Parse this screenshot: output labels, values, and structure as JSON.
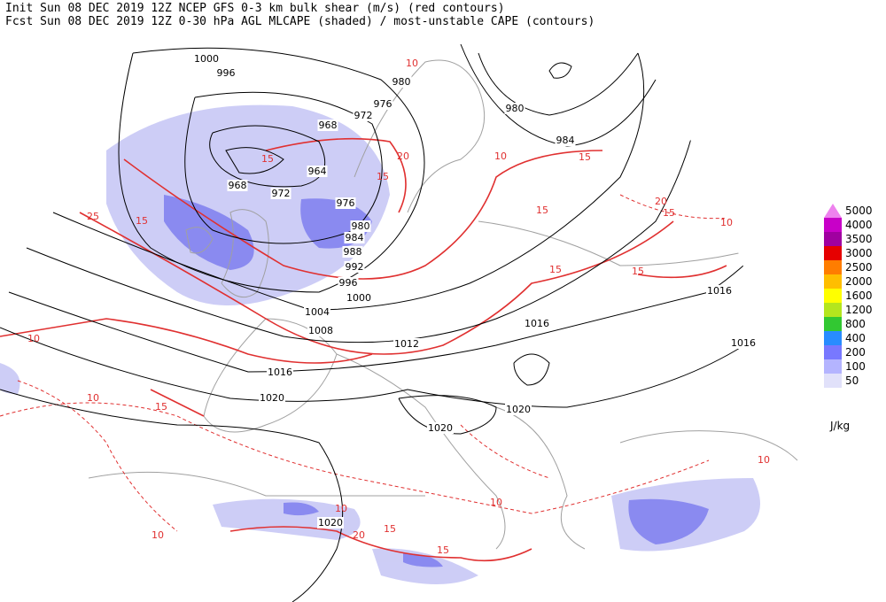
{
  "header": {
    "line1": "Init  Sun 08 DEC 2019 12Z  NCEP GFS 0-3 km bulk shear (m/s) (red contours)",
    "line2": "Fcst Sun 08 DEC 2019 12Z  0-30 hPa AGL MLCAPE (shaded) / most-unstable CAPE (contours)"
  },
  "colorbar": {
    "unit": "J/kg",
    "levels": [
      {
        "label": "5000",
        "color": "#ee82ee"
      },
      {
        "label": "4000",
        "color": "#c800c8"
      },
      {
        "label": "3500",
        "color": "#a000a0"
      },
      {
        "label": "3000",
        "color": "#e60000"
      },
      {
        "label": "2500",
        "color": "#ff7d00"
      },
      {
        "label": "2000",
        "color": "#ffbe00"
      },
      {
        "label": "1600",
        "color": "#ffff00"
      },
      {
        "label": "1200",
        "color": "#b4e61e"
      },
      {
        "label": "800",
        "color": "#32c832"
      },
      {
        "label": "400",
        "color": "#288cff"
      },
      {
        "label": "200",
        "color": "#7878ff"
      },
      {
        "label": "100",
        "color": "#b4b4ff"
      },
      {
        "label": "50",
        "color": "#e1e1fa"
      }
    ]
  },
  "isobar_labels": [
    "1000",
    "996",
    "980",
    "976",
    "972",
    "968",
    "964",
    "968",
    "972",
    "976",
    "980",
    "984",
    "988",
    "992",
    "996",
    "1000",
    "1004",
    "1008",
    "1012",
    "1016",
    "1020",
    "1020",
    "1020",
    "1016",
    "1016",
    "1016",
    "980",
    "984",
    "1020"
  ],
  "shear_labels": [
    "15",
    "20",
    "15",
    "25",
    "15",
    "10",
    "10",
    "15",
    "10",
    "10",
    "15",
    "15",
    "20",
    "10",
    "15",
    "20",
    "15",
    "10",
    "15",
    "10",
    "10",
    "15",
    "15",
    "10"
  ]
}
